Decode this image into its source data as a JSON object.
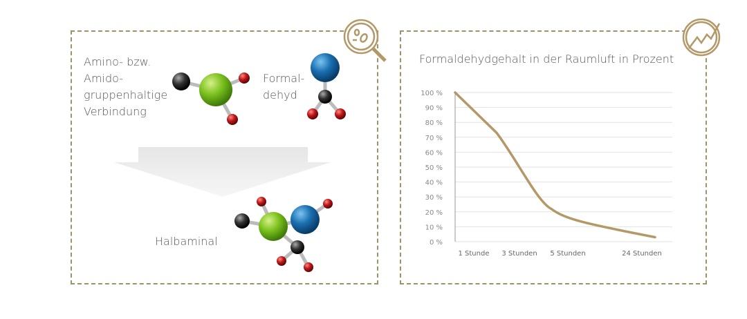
{
  "left_panel": {
    "reactant_1_label": "Amino- bzw.\nAmido-\ngruppenhaltige\nVerbindung",
    "reactant_2_label": "Formal-\ndehyd",
    "product_label": "Halbaminal",
    "icon": "magnifier-bacteria-icon"
  },
  "right_panel": {
    "icon": "trend-chart-icon"
  },
  "colors": {
    "accent": "#b39868",
    "border": "#9c9468",
    "molecule_green": "#7cc21e",
    "molecule_blue": "#1a6fb0",
    "molecule_red": "#c0171a",
    "molecule_black": "#333333"
  },
  "chart_data": {
    "type": "line",
    "title": "Formaldehydgehalt in der Raumluft in Prozent",
    "categories": [
      "1 Stunde",
      "3 Stunden",
      "5 Stunden",
      "24 Stunden"
    ],
    "series": [
      {
        "values": [
          100,
          73,
          22,
          3
        ]
      }
    ],
    "yticks": [
      "0 %",
      "10 %",
      "20 %",
      "30 %",
      "40 %",
      "50 %",
      "60 %",
      "70 %",
      "80 %",
      "90 %",
      "100 %"
    ],
    "ylim": [
      0,
      100
    ],
    "grid": true
  }
}
